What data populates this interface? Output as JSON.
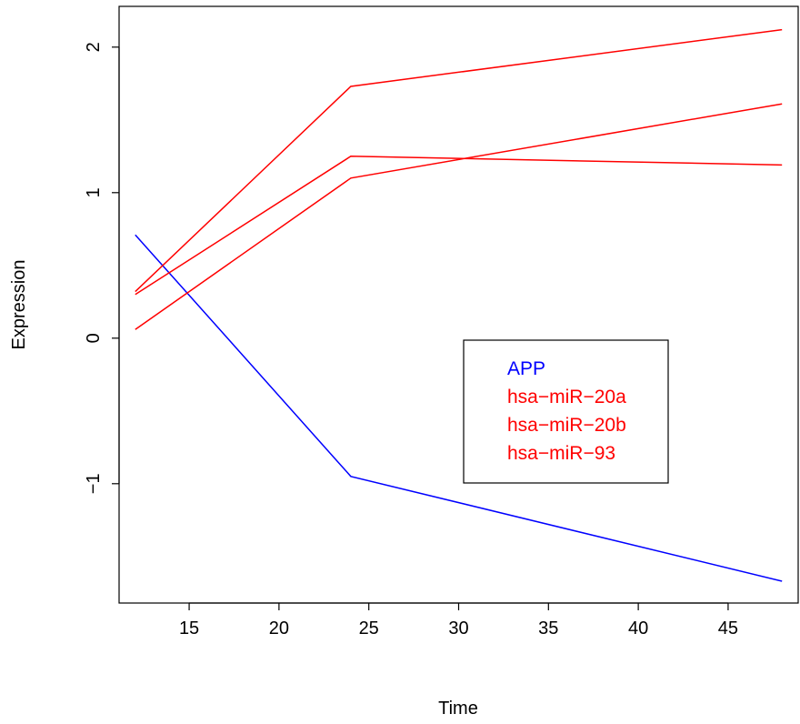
{
  "chart_data": {
    "type": "line",
    "title": "",
    "xlabel": "Time",
    "ylabel": "Expression",
    "xlim": [
      11.1,
      48.9
    ],
    "ylim": [
      -1.82,
      2.28
    ],
    "x_ticks": [
      15,
      20,
      25,
      30,
      35,
      40,
      45
    ],
    "y_ticks": [
      -1,
      0,
      1,
      2
    ],
    "x_tick_labels": [
      "15",
      "20",
      "25",
      "30",
      "35",
      "40",
      "45"
    ],
    "y_tick_labels": [
      "−1",
      "0",
      "1",
      "2"
    ],
    "grid": false,
    "legend_position": "center-right",
    "series": [
      {
        "name": "APP",
        "color": "#0000ff",
        "x": [
          12,
          24,
          48
        ],
        "y": [
          0.71,
          -0.95,
          -1.67
        ]
      },
      {
        "name": "hsa−miR−20a",
        "color": "#ff0000",
        "x": [
          12,
          24,
          48
        ],
        "y": [
          0.32,
          1.73,
          2.12
        ]
      },
      {
        "name": "hsa−miR−20b",
        "color": "#ff0000",
        "x": [
          12,
          24,
          48
        ],
        "y": [
          0.3,
          1.25,
          1.19
        ]
      },
      {
        "name": "hsa−miR−93",
        "color": "#ff0000",
        "x": [
          12,
          24,
          48
        ],
        "y": [
          0.06,
          1.1,
          1.61
        ]
      }
    ]
  }
}
